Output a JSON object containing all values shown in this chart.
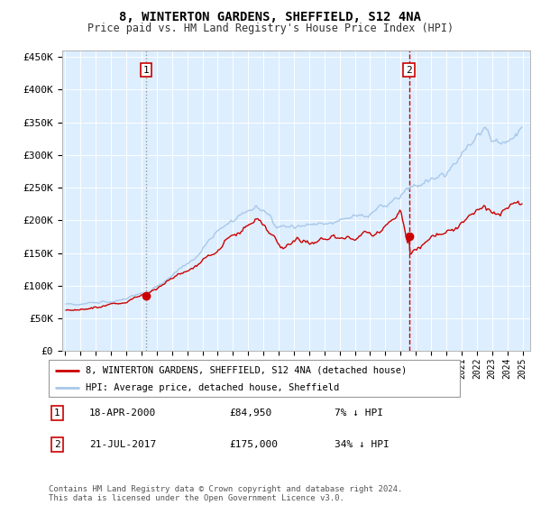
{
  "title": "8, WINTERTON GARDENS, SHEFFIELD, S12 4NA",
  "subtitle": "Price paid vs. HM Land Registry's House Price Index (HPI)",
  "legend_line1": "8, WINTERTON GARDENS, SHEFFIELD, S12 4NA (detached house)",
  "legend_line2": "HPI: Average price, detached house, Sheffield",
  "annotation1_date": "18-APR-2000",
  "annotation1_price": "£84,950",
  "annotation1_hpi": "7% ↓ HPI",
  "annotation2_date": "21-JUL-2017",
  "annotation2_price": "£175,000",
  "annotation2_hpi": "34% ↓ HPI",
  "footer": "Contains HM Land Registry data © Crown copyright and database right 2024.\nThis data is licensed under the Open Government Licence v3.0.",
  "hpi_color": "#a8c8e8",
  "price_color": "#cc0000",
  "marker_color": "#cc0000",
  "vline1_color": "#999999",
  "vline2_color": "#cc0000",
  "bg_color": "#ddeeff",
  "plot_bg": "#ffffff",
  "grid_color": "#ffffff",
  "ylim": [
    0,
    460000
  ],
  "yticks": [
    0,
    50000,
    100000,
    150000,
    200000,
    250000,
    300000,
    350000,
    400000,
    450000
  ],
  "ytick_labels": [
    "£0",
    "£50K",
    "£100K",
    "£150K",
    "£200K",
    "£250K",
    "£300K",
    "£350K",
    "£400K",
    "£450K"
  ],
  "sale1_x": 2000.29,
  "sale1_y": 84950,
  "sale2_x": 2017.55,
  "sale2_y": 175000,
  "xmin": 1994.8,
  "xmax": 2025.5
}
